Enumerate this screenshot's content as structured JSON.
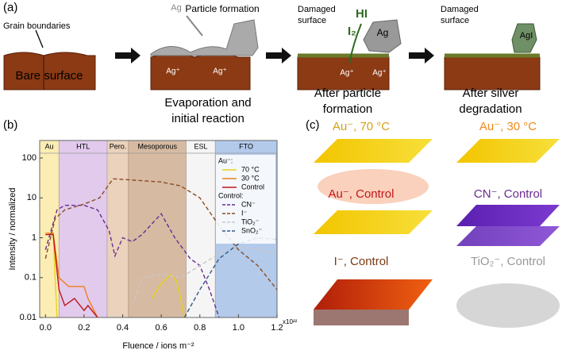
{
  "panel_a": {
    "label": "(a)",
    "texts": [
      "Grain boundaries",
      "Bare surface",
      "Ag",
      "Particle formation",
      "Ag⁺",
      "Ag⁺",
      "Evaporation and",
      "initial reaction",
      "Damaged",
      "surface",
      "HI",
      "I₂",
      "Ag",
      "Ag⁺",
      "Ag⁺",
      "After particle",
      "formation",
      "Damaged",
      "surface",
      "AgI",
      "After silver",
      "degradation"
    ]
  },
  "chart_data": {
    "type": "line",
    "label": "(b)",
    "y_label": "Intensity / normalized",
    "x_label": "Fluence / ions m⁻²",
    "x_multiplier": "x10²²",
    "log_y": true,
    "xlim": [
      -0.03,
      1.2
    ],
    "ylim": [
      0.01,
      275
    ],
    "xticks": [
      {
        "value": 0,
        "label": "0.0"
      },
      0.2,
      0.4,
      0.6,
      0.8,
      {
        "value": 1,
        "label": "1.0"
      },
      1.2
    ],
    "yticks": [
      0.01,
      0.1,
      1,
      10,
      100
    ],
    "regions": [
      {
        "label": "Au",
        "start": -0.03,
        "end": 0.07,
        "color": "#f9e79a"
      },
      {
        "label": "HTL",
        "start": 0.07,
        "end": 0.32,
        "color": "#d7b8e6"
      },
      {
        "label": "Pero.",
        "start": 0.32,
        "end": 0.43,
        "color": "#e3c3a6"
      },
      {
        "label": "Mesoporous",
        "start": 0.43,
        "end": 0.73,
        "color": "#c8a383"
      },
      {
        "label": "ESL",
        "start": 0.73,
        "end": 0.88,
        "color": "#f3f1f2"
      },
      {
        "label": "FTO",
        "start": 0.88,
        "end": 1.2,
        "color": "#9ab8e4"
      }
    ],
    "legend_titles": [
      "Au⁻:",
      "Control:"
    ],
    "series": [
      {
        "name": "70 °C",
        "color": "#e8d21c",
        "dash": false,
        "group": 0,
        "x": [
          0,
          0.04,
          0.05,
          0.06,
          0.5,
          0.55,
          0.6,
          0.65,
          0.68,
          0.7,
          0.72
        ],
        "values": [
          1.3,
          1.3,
          0.1,
          0.01,
          null,
          0.03,
          0.07,
          0.12,
          0.08,
          0.03,
          0.01
        ]
      },
      {
        "name": "30 °C",
        "color": "#f07f1a",
        "dash": false,
        "group": 0,
        "x": [
          0,
          0.04,
          0.07,
          0.12,
          0.2,
          0.22,
          0.27
        ],
        "values": [
          1.3,
          1.3,
          0.1,
          0.06,
          0.06,
          0.03,
          0.01
        ]
      },
      {
        "name": "Control",
        "color": "#c0161c",
        "dash": false,
        "group": 0,
        "x": [
          0,
          0.04,
          0.07,
          0.1,
          0.15,
          0.2,
          0.22,
          0.27
        ],
        "values": [
          1.2,
          1.2,
          0.05,
          0.02,
          0.03,
          0.015,
          0.02,
          0.01
        ]
      },
      {
        "name": "CN⁻",
        "color": "#6a2c91",
        "dash": true,
        "group": 1,
        "x": [
          0,
          0.06,
          0.1,
          0.2,
          0.27,
          0.33,
          0.36,
          0.4,
          0.45,
          0.5,
          0.6,
          0.67,
          0.75,
          0.8,
          0.85,
          0.9
        ],
        "values": [
          0.5,
          5,
          6.5,
          6.5,
          5,
          1.5,
          0.35,
          1,
          0.8,
          1.2,
          4,
          1,
          0.3,
          0.2,
          0.05,
          0.01
        ]
      },
      {
        "name": "I⁻",
        "color": "#8a4b22",
        "dash": true,
        "group": 1,
        "x": [
          0,
          0.05,
          0.1,
          0.2,
          0.28,
          0.35,
          0.45,
          0.6,
          0.7,
          0.8,
          0.9,
          1,
          1.1,
          1.2
        ],
        "values": [
          0.3,
          3,
          5,
          7,
          10,
          30,
          28,
          25,
          20,
          10,
          2,
          0.5,
          0.2,
          0.05
        ]
      },
      {
        "name": "TiO₂⁻",
        "color": "#c8c8c8",
        "dash": true,
        "group": 1,
        "x": [
          0.45,
          0.5,
          0.6,
          0.7,
          0.8,
          0.9,
          1,
          1.1,
          1.2
        ],
        "values": [
          0.02,
          0.1,
          0.12,
          0.1,
          0.2,
          0.4,
          0.6,
          0.5,
          0.4
        ]
      },
      {
        "name": "SnO₂⁻",
        "color": "#2e5a87",
        "dash": true,
        "group": 1,
        "x": [
          0.72,
          0.8,
          0.9,
          1,
          1.1,
          1.2
        ],
        "values": [
          0.01,
          0.05,
          0.3,
          0.7,
          1,
          0.9
        ]
      }
    ]
  },
  "panel_c": {
    "label": "(c)",
    "titles": [
      "Au⁻, 70 °C",
      "Au⁻, 30 °C",
      "Au⁻, Control",
      "CN⁻, Control",
      "I⁻, Control",
      "TiO₂⁻, Control"
    ]
  }
}
